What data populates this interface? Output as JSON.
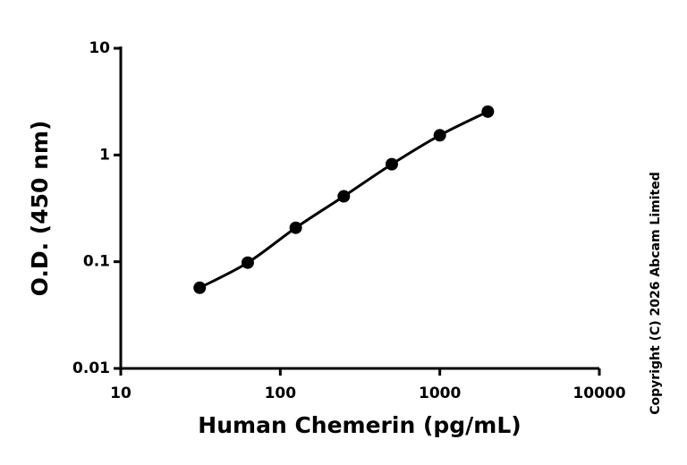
{
  "chart_data": {
    "type": "scatter",
    "x_label": "Human Chemerin (pg/mL)",
    "y_label": "O.D. (450 nm)",
    "annotation": "Copyright (C) 2026 Abcam Limited",
    "x": [
      31.25,
      62.5,
      125,
      250,
      500,
      1000,
      2000
    ],
    "series": [
      {
        "color": "#000000",
        "values": [
          0.057,
          0.098,
          0.208,
          0.41,
          0.82,
          1.53,
          2.55
        ]
      }
    ],
    "xscale": "log",
    "yscale": "log",
    "xlim": [
      10,
      10000
    ],
    "ylim": [
      0.01,
      10
    ],
    "xticks": [
      10,
      100,
      1000,
      10000
    ],
    "yticks": [
      0.01,
      0.1,
      1,
      10
    ]
  }
}
